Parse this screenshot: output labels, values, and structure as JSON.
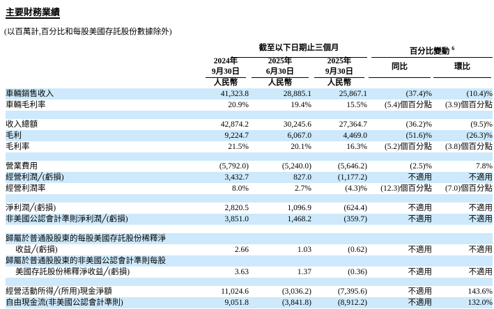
{
  "page": {
    "title": "主要財務業績",
    "subtitle": "(以百萬計,百分比和每股美國存託股份數據除外)"
  },
  "table": {
    "period_group": "截至以下日期止三個月",
    "change_group": "百分比變動",
    "change_note": "6",
    "columns": [
      {
        "line1": "2024年",
        "line2": "9月30日",
        "currency": "人民幣"
      },
      {
        "line1": "2025年",
        "line2": "6月30日",
        "currency": "人民幣"
      },
      {
        "line1": "2025年",
        "line2": "9月30日",
        "currency": "人民幣"
      }
    ],
    "change_columns": [
      {
        "label": "同比"
      },
      {
        "label": "環比"
      }
    ],
    "rows": [
      {
        "label": "車輛銷售收入",
        "values": [
          "41,323.8",
          "28,885.1",
          "25,867.1",
          "(37.4)%",
          "(10.4)%"
        ],
        "bg": "blue"
      },
      {
        "label": "車輛毛利率",
        "values": [
          "20.9%",
          "19.4%",
          "15.5%",
          "(5.4)個百分點",
          "(3.9)個百分點"
        ],
        "bg": "white"
      },
      {
        "blank": true,
        "bg": "blue"
      },
      {
        "label": "收入總額",
        "values": [
          "42,874.2",
          "30,245.6",
          "27,364.7",
          "(36.2)%",
          "(9.5)%"
        ],
        "bg": "white"
      },
      {
        "label": "毛利",
        "values": [
          "9,224.7",
          "6,067.0",
          "4,469.0",
          "(51.6)%",
          "(26.3)%"
        ],
        "bg": "blue"
      },
      {
        "label": "毛利率",
        "values": [
          "21.5%",
          "20.1%",
          "16.3%",
          "(5.2)個百分點",
          "(3.8)個百分點"
        ],
        "bg": "white"
      },
      {
        "blank": true,
        "bg": "blue"
      },
      {
        "label": "營業費用",
        "values": [
          "(5,792.0)",
          "(5,240.0)",
          "(5,646.2)",
          "(2.5)%",
          "7.8%"
        ],
        "bg": "white"
      },
      {
        "label": "經營利潤╱(虧損)",
        "values": [
          "3,432.7",
          "827.0",
          "(1,177.2)",
          "不適用",
          "不適用"
        ],
        "bg": "blue"
      },
      {
        "label": "經營利潤率",
        "values": [
          "8.0%",
          "2.7%",
          "(4.3)%",
          "(12.3)個百分點",
          "(7.0)個百分點"
        ],
        "bg": "white"
      },
      {
        "blank": true,
        "bg": "blue"
      },
      {
        "label": "淨利潤╱(虧損)",
        "values": [
          "2,820.5",
          "1,096.9",
          "(624.4)",
          "不適用",
          "不適用"
        ],
        "bg": "white"
      },
      {
        "label": "非美國公認會計準則淨利潤╱(虧損)",
        "values": [
          "3,851.0",
          "1,468.2",
          "(359.7)",
          "不適用",
          "不適用"
        ],
        "bg": "blue"
      },
      {
        "blank": true,
        "bg": "white"
      },
      {
        "label": "歸屬於普通股股東的每股美國存託股份稀釋淨",
        "span": true,
        "bg": "blue"
      },
      {
        "label": "收益╱(虧損)",
        "indent": true,
        "values": [
          "2.66",
          "1.03",
          "(0.62)",
          "不適用",
          "不適用"
        ],
        "bg": "white"
      },
      {
        "label": "歸屬於普通股股東的非美國公認會計準則每股",
        "span": true,
        "bg": "blue"
      },
      {
        "label": "美國存託股份稀釋淨收益╱(虧損)",
        "indent": true,
        "values": [
          "3.63",
          "1.37",
          "(0.36)",
          "不適用",
          "不適用"
        ],
        "bg": "white"
      },
      {
        "blank": true,
        "bg": "blue"
      },
      {
        "label": "經營活動所得╱(所用)現金淨額",
        "values": [
          "11,024.6",
          "(3,036.2)",
          "(7,395.6)",
          "不適用",
          "143.6%"
        ],
        "bg": "white"
      },
      {
        "label": "自由現金流(非美國公認會計準則)",
        "values": [
          "9,051.8",
          "(3,841.8)",
          "(8,912.2)",
          "不適用",
          "132.0%"
        ],
        "bg": "blue"
      }
    ]
  }
}
